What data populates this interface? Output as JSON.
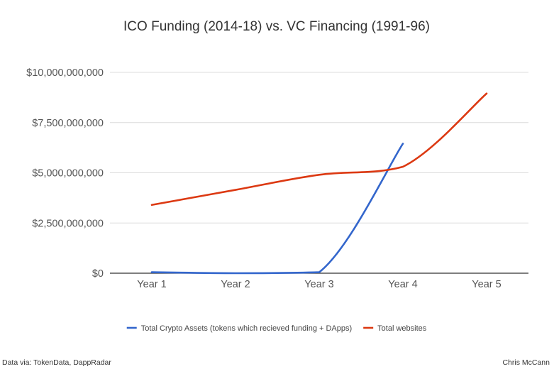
{
  "chart_data": {
    "type": "line",
    "title": "ICO Funding (2014-18) vs. VC Financing (1991-96)",
    "categories": [
      "Year 1",
      "Year 2",
      "Year 3",
      "Year 4",
      "Year 5"
    ],
    "y_ticks": [
      "$0",
      "$2,500,000,000",
      "$5,000,000,000",
      "$7,500,000,000",
      "$10,000,000,000"
    ],
    "ylim": [
      0,
      10000000000
    ],
    "grid": true,
    "legend_position": "bottom",
    "smooth": true,
    "series": [
      {
        "name": "Total Crypto Assets (tokens which recieved funding + DApps)",
        "color": "#3366cc",
        "x": [
          1,
          2,
          3,
          4
        ],
        "values": [
          50000000,
          0,
          50000000,
          6450000000
        ]
      },
      {
        "name": "Total websites",
        "color": "#dc3912",
        "x": [
          1,
          2,
          3,
          4,
          5
        ],
        "values": [
          3400000000,
          4150000000,
          4900000000,
          5300000000,
          8950000000
        ]
      }
    ]
  },
  "footer": {
    "source": "Data via: TokenData, DappRadar",
    "author": "Chris McCann"
  }
}
